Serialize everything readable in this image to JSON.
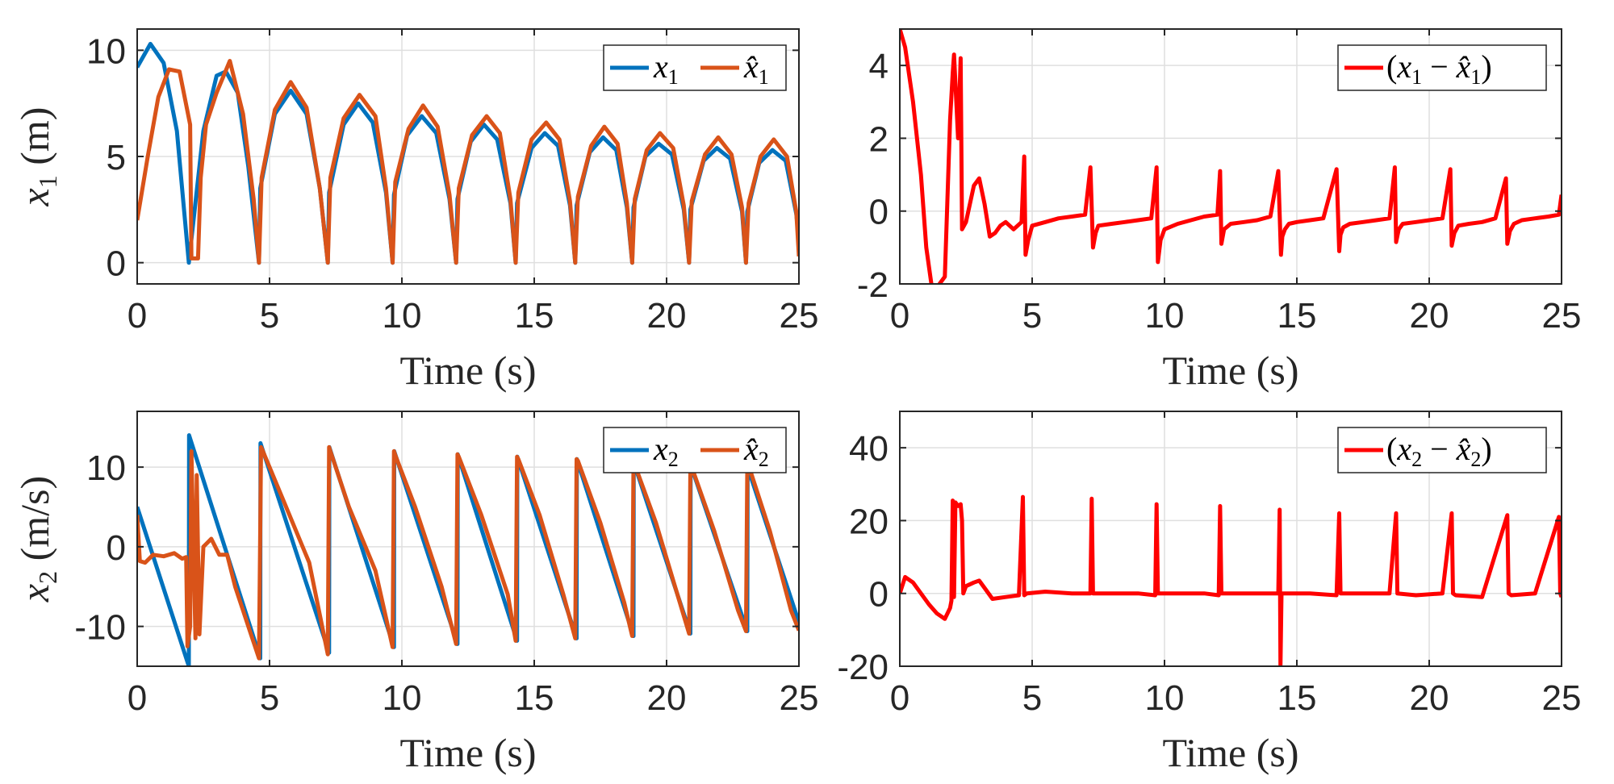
{
  "colors": {
    "blue": "#0072BD",
    "orange": "#D95319",
    "red": "#FF0000",
    "axis": "#262626",
    "grid": "#DFDFDF"
  },
  "chart_data": [
    {
      "id": "p1",
      "type": "line",
      "xlabel": "Time (s)",
      "ylabel_main": "x",
      "ylabel_sub": "1",
      "ylabel_unit": " (m)",
      "xlim": [
        0,
        25
      ],
      "ylim": [
        -1,
        11
      ],
      "xticks": [
        0,
        5,
        10,
        15,
        20,
        25
      ],
      "yticks": [
        0,
        5,
        10
      ],
      "xtick_labels": [
        "0",
        "5",
        "10",
        "15",
        "20",
        "25"
      ],
      "ytick_labels": [
        "0",
        "5",
        "10"
      ],
      "legend": "top-right",
      "grid": true,
      "series": [
        {
          "name": "x₁",
          "legend_main": "x",
          "legend_sub": "1",
          "color": "blue",
          "x": [
            0,
            0.5,
            1.0,
            1.5,
            1.95,
            2.5,
            3.0,
            3.35,
            3.8,
            4.2,
            4.6,
            4.65,
            5.2,
            5.8,
            6.4,
            6.9,
            7.2,
            7.25,
            7.8,
            8.35,
            8.9,
            9.4,
            9.65,
            9.7,
            10.2,
            10.75,
            11.3,
            11.8,
            12.05,
            12.1,
            12.6,
            13.1,
            13.6,
            14.1,
            14.3,
            14.35,
            14.9,
            15.4,
            15.9,
            16.35,
            16.55,
            16.6,
            17.1,
            17.6,
            18.1,
            18.5,
            18.7,
            18.75,
            19.2,
            19.7,
            20.2,
            20.65,
            20.85,
            20.9,
            21.4,
            21.9,
            22.4,
            22.85,
            23.0,
            23.05,
            23.5,
            24.0,
            24.5,
            24.9,
            25.0
          ],
          "y": [
            9.2,
            10.3,
            9.4,
            6.2,
            0,
            6.2,
            8.8,
            9.0,
            8.0,
            4.5,
            0,
            3.5,
            7.0,
            8.1,
            7.0,
            3.5,
            0,
            3.3,
            6.5,
            7.5,
            6.6,
            3.3,
            0,
            3.2,
            6.0,
            6.9,
            6.1,
            3.0,
            0,
            3.0,
            5.7,
            6.5,
            5.8,
            2.8,
            0,
            2.8,
            5.4,
            6.1,
            5.5,
            2.7,
            0,
            2.7,
            5.2,
            5.9,
            5.3,
            2.6,
            0,
            2.6,
            5.0,
            5.6,
            5.1,
            2.5,
            0,
            2.5,
            4.8,
            5.4,
            4.9,
            2.4,
            0,
            2.4,
            4.7,
            5.3,
            4.8,
            2.3,
            1.2
          ]
        },
        {
          "name": "x̂₁",
          "legend_main": "x̂",
          "legend_sub": "1",
          "color": "orange",
          "x": [
            0,
            0.4,
            0.8,
            1.2,
            1.6,
            2.0,
            2.05,
            2.3,
            2.4,
            2.6,
            3.0,
            3.5,
            4.0,
            4.4,
            4.6,
            4.7,
            5.2,
            5.8,
            6.4,
            6.9,
            7.2,
            7.3,
            7.8,
            8.4,
            9.0,
            9.4,
            9.65,
            9.75,
            10.25,
            10.8,
            11.35,
            11.8,
            12.05,
            12.15,
            12.65,
            13.2,
            13.7,
            14.1,
            14.3,
            14.4,
            14.9,
            15.45,
            15.95,
            16.35,
            16.55,
            16.65,
            17.15,
            17.65,
            18.15,
            18.5,
            18.7,
            18.8,
            19.25,
            19.75,
            20.25,
            20.65,
            20.85,
            20.95,
            21.45,
            21.95,
            22.45,
            22.85,
            23.0,
            23.1,
            23.55,
            24.05,
            24.55,
            24.9,
            25.0
          ],
          "y": [
            2.0,
            5.0,
            7.8,
            9.1,
            9.0,
            6.5,
            0.2,
            0.2,
            4.0,
            6.5,
            8.0,
            9.5,
            7.0,
            3.0,
            0,
            4.0,
            7.2,
            8.5,
            7.3,
            3.5,
            0,
            4.0,
            6.8,
            7.9,
            6.9,
            3.5,
            0,
            3.8,
            6.3,
            7.4,
            6.4,
            3.2,
            0,
            3.5,
            6.0,
            6.9,
            6.1,
            3.0,
            0,
            3.3,
            5.8,
            6.6,
            5.8,
            2.9,
            0,
            3.1,
            5.5,
            6.4,
            5.6,
            2.8,
            0,
            3.0,
            5.3,
            6.1,
            5.4,
            2.7,
            0,
            2.9,
            5.1,
            5.9,
            5.1,
            2.6,
            0,
            2.8,
            5.0,
            5.8,
            5.0,
            2.4,
            0.3
          ]
        }
      ]
    },
    {
      "id": "p2",
      "type": "line",
      "xlabel": "Time (s)",
      "xlim": [
        0,
        25
      ],
      "ylim": [
        -2,
        5
      ],
      "xticks": [
        0,
        5,
        10,
        15,
        20,
        25
      ],
      "yticks": [
        -2,
        0,
        2,
        4
      ],
      "xtick_labels": [
        "0",
        "5",
        "10",
        "15",
        "20",
        "25"
      ],
      "ytick_labels": [
        "-2",
        "0",
        "2",
        "4"
      ],
      "legend": "top-right",
      "grid": true,
      "series": [
        {
          "name": "(x₁ − x̂₁)",
          "legend_paren_open": "(",
          "legend_a": "x",
          "legend_a_sub": "1",
          "legend_minus": " − ",
          "legend_b": "x̂",
          "legend_b_sub": "1",
          "legend_paren_close": ")",
          "color": "red",
          "x": [
            0,
            0.2,
            0.5,
            0.8,
            1.0,
            1.25,
            1.5,
            1.7,
            1.9,
            2.0,
            2.05,
            2.2,
            2.3,
            2.35,
            2.5,
            2.8,
            3.0,
            3.2,
            3.4,
            3.6,
            3.8,
            4.0,
            4.3,
            4.6,
            4.7,
            4.75,
            4.85,
            5.0,
            5.5,
            6.0,
            6.5,
            7.0,
            7.2,
            7.3,
            7.4,
            7.5,
            8.0,
            8.5,
            9.0,
            9.5,
            9.7,
            9.75,
            9.85,
            10.0,
            10.5,
            11.0,
            11.5,
            12.0,
            12.1,
            12.15,
            12.25,
            12.5,
            13.0,
            13.5,
            14.0,
            14.3,
            14.4,
            14.45,
            14.55,
            14.7,
            15.0,
            15.5,
            16.0,
            16.5,
            16.6,
            16.65,
            16.75,
            17.0,
            17.5,
            18.0,
            18.5,
            18.7,
            18.75,
            18.85,
            19.0,
            19.5,
            20.0,
            20.5,
            20.8,
            20.85,
            20.95,
            21.1,
            21.5,
            22.0,
            22.5,
            22.9,
            22.95,
            23.05,
            23.2,
            23.5,
            24.0,
            24.5,
            24.9,
            25.0
          ],
          "y": [
            5.0,
            4.5,
            3.0,
            1.0,
            -1.0,
            -2.3,
            -2.0,
            -1.8,
            2.5,
            3.8,
            4.3,
            2.0,
            4.2,
            -0.5,
            -0.3,
            0.7,
            0.9,
            0.2,
            -0.7,
            -0.6,
            -0.4,
            -0.3,
            -0.5,
            -0.3,
            1.5,
            -1.2,
            -0.8,
            -0.4,
            -0.3,
            -0.2,
            -0.15,
            -0.1,
            1.2,
            -1.0,
            -0.6,
            -0.4,
            -0.35,
            -0.3,
            -0.25,
            -0.2,
            1.2,
            -1.4,
            -0.8,
            -0.5,
            -0.35,
            -0.25,
            -0.15,
            -0.1,
            1.1,
            -0.9,
            -0.5,
            -0.35,
            -0.3,
            -0.25,
            -0.15,
            1.1,
            -1.2,
            -0.7,
            -0.5,
            -0.35,
            -0.3,
            -0.25,
            -0.2,
            1.15,
            -1.1,
            -0.65,
            -0.45,
            -0.35,
            -0.3,
            -0.25,
            -0.2,
            1.2,
            -0.85,
            -0.5,
            -0.35,
            -0.3,
            -0.25,
            -0.2,
            1.15,
            -0.95,
            -0.6,
            -0.4,
            -0.35,
            -0.3,
            -0.2,
            0.9,
            -0.9,
            -0.55,
            -0.35,
            -0.25,
            -0.2,
            -0.15,
            -0.1,
            0.45
          ]
        }
      ]
    },
    {
      "id": "p3",
      "type": "line",
      "xlabel": "Time (s)",
      "ylabel_main": "x",
      "ylabel_sub": "2",
      "ylabel_unit": " (m/s)",
      "xlim": [
        0,
        25
      ],
      "ylim": [
        -15,
        17
      ],
      "xticks": [
        0,
        5,
        10,
        15,
        20,
        25
      ],
      "yticks": [
        -10,
        0,
        10
      ],
      "xtick_labels": [
        "0",
        "5",
        "10",
        "15",
        "20",
        "25"
      ],
      "ytick_labels": [
        "-10",
        "0",
        "10"
      ],
      "legend": "top-right",
      "grid": true,
      "series": [
        {
          "name": "x₂",
          "legend_main": "x",
          "legend_sub": "2",
          "color": "blue",
          "x": [
            0,
            1.95,
            1.96,
            4.65,
            4.66,
            7.25,
            7.26,
            9.7,
            9.71,
            12.1,
            12.11,
            14.35,
            14.36,
            16.6,
            16.61,
            18.75,
            18.76,
            20.9,
            20.91,
            23.05,
            23.06,
            25.0
          ],
          "y": [
            5,
            -15,
            14,
            -14,
            13,
            -13.3,
            12.5,
            -12.6,
            12,
            -12.2,
            11.6,
            -11.8,
            11.3,
            -11.5,
            11,
            -11.2,
            10.6,
            -10.9,
            10.3,
            -10.6,
            10,
            -9.5
          ]
        },
        {
          "name": "x̂₂",
          "legend_main": "x̂",
          "legend_sub": "2",
          "color": "orange",
          "x": [
            0,
            0.1,
            0.3,
            0.6,
            1.0,
            1.4,
            1.7,
            1.85,
            1.9,
            2.0,
            2.05,
            2.2,
            2.25,
            2.35,
            2.5,
            2.8,
            3.1,
            3.4,
            3.7,
            4.0,
            4.3,
            4.6,
            4.68,
            4.75,
            5.5,
            6.5,
            7.2,
            7.25,
            7.3,
            8.0,
            9.0,
            9.65,
            9.7,
            9.75,
            10.5,
            11.5,
            12.05,
            12.1,
            12.15,
            13.0,
            14.0,
            14.3,
            14.35,
            14.4,
            15.2,
            16.1,
            16.55,
            16.6,
            16.65,
            17.5,
            18.4,
            18.7,
            18.75,
            18.8,
            19.6,
            20.5,
            20.85,
            20.9,
            20.95,
            21.8,
            22.7,
            23.0,
            23.05,
            23.1,
            23.9,
            24.7,
            25.0
          ],
          "y": [
            4,
            -1.8,
            -2,
            -1,
            -1.2,
            -0.8,
            -1.5,
            -1.3,
            -12.5,
            -10,
            12,
            -11.5,
            9,
            -11,
            0,
            1,
            -1,
            -1,
            -5,
            -8,
            -11,
            -14,
            12.5,
            12,
            6,
            -2,
            -13.5,
            12.5,
            12,
            5,
            -3,
            -12.6,
            12,
            11.5,
            5,
            -5,
            -12.2,
            11.6,
            11.3,
            4,
            -6,
            -11.8,
            11.3,
            11,
            4,
            -6,
            -11.5,
            11,
            10.8,
            3,
            -7,
            -11.2,
            10.6,
            10.3,
            3,
            -7,
            -10.9,
            10.3,
            10,
            2,
            -8,
            -10.6,
            10,
            10.2,
            2,
            -8,
            -10.5
          ]
        }
      ]
    },
    {
      "id": "p4",
      "type": "line",
      "xlabel": "Time (s)",
      "xlim": [
        0,
        25
      ],
      "ylim": [
        -20,
        50
      ],
      "xticks": [
        0,
        5,
        10,
        15,
        20,
        25
      ],
      "yticks": [
        -20,
        0,
        20,
        40
      ],
      "xtick_labels": [
        "0",
        "5",
        "10",
        "15",
        "20",
        "25"
      ],
      "ytick_labels": [
        "-20",
        "0",
        "20",
        "40"
      ],
      "legend": "top-right",
      "grid": true,
      "series": [
        {
          "name": "(x₂ − x̂₂)",
          "legend_paren_open": "(",
          "legend_a": "x",
          "legend_a_sub": "2",
          "legend_minus": " − ",
          "legend_b": "x̂",
          "legend_b_sub": "2",
          "legend_paren_close": ")",
          "color": "red",
          "x": [
            0,
            0.2,
            0.5,
            0.8,
            1.1,
            1.4,
            1.7,
            1.9,
            1.95,
            2.0,
            2.05,
            2.1,
            2.2,
            2.3,
            2.35,
            2.4,
            2.5,
            2.8,
            3.0,
            3.2,
            3.5,
            4.0,
            4.5,
            4.65,
            4.7,
            4.8,
            5.5,
            6.5,
            7.2,
            7.25,
            7.3,
            8.0,
            9.0,
            9.65,
            9.7,
            9.75,
            10.5,
            11.5,
            12.05,
            12.1,
            12.15,
            13.0,
            14.0,
            14.3,
            14.35,
            14.38,
            14.42,
            14.5,
            15.5,
            16.5,
            16.6,
            16.65,
            17.5,
            18.5,
            18.75,
            18.8,
            19.5,
            20.5,
            20.85,
            20.9,
            21.0,
            22.0,
            22.95,
            23.0,
            23.1,
            24.0,
            24.9,
            24.95,
            25.0
          ],
          "y": [
            0,
            4.5,
            3,
            0,
            -3,
            -5.5,
            -7,
            -4,
            -2,
            25.5,
            -1,
            25,
            24,
            24.5,
            20,
            0,
            2,
            3,
            3.5,
            1.5,
            -1.5,
            -1,
            -0.5,
            26.5,
            -0.5,
            0,
            0.5,
            0,
            0,
            26,
            0,
            0,
            0,
            -0.5,
            24.5,
            0,
            0,
            0,
            -0.5,
            24,
            0,
            0,
            0,
            0,
            23,
            -20,
            0,
            0,
            0,
            -0.5,
            22,
            0,
            0,
            0,
            22,
            0,
            -0.5,
            0,
            22,
            0,
            -0.5,
            -1,
            21.5,
            0,
            -0.5,
            0,
            21,
            0,
            -1
          ]
        }
      ]
    }
  ]
}
